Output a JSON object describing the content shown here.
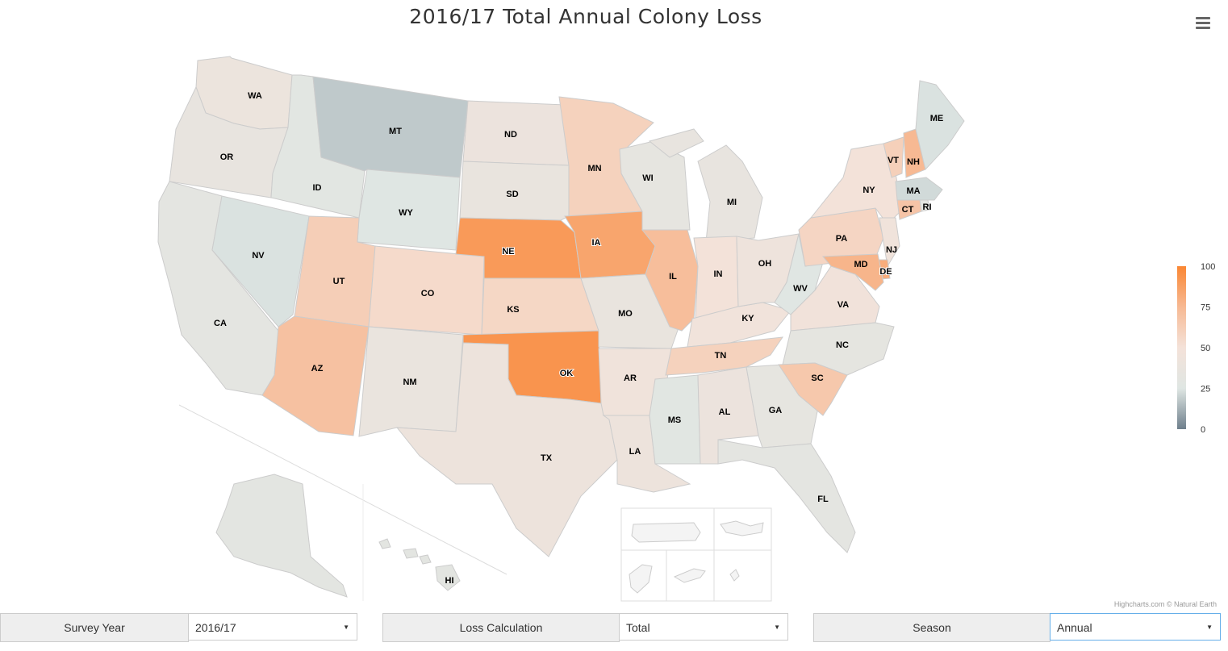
{
  "title": "2016/17 Total Annual Colony Loss",
  "credit": "Highcharts.com © Natural Earth",
  "colors": {
    "scale": [
      "#6e7f8c",
      "#dfe6e3",
      "#f4e2d9",
      "#f7b993",
      "#fa8633"
    ],
    "border": "#cccccc",
    "inset_border": "#cccccc"
  },
  "legend": {
    "min": 0,
    "max": 100,
    "ticks": [
      "100",
      "75",
      "50",
      "25",
      "0"
    ]
  },
  "controls": [
    {
      "label": "Survey Year",
      "value": "2016/17"
    },
    {
      "label": "Loss Calculation",
      "value": "Total"
    },
    {
      "label": "Season",
      "value": "Annual"
    }
  ],
  "icons": {
    "menu": "hamburger-icon",
    "dropdown": "caret-down-icon"
  },
  "states": [
    {
      "code": "WA",
      "loss": 40
    },
    {
      "code": "OR",
      "loss": 36
    },
    {
      "code": "CA",
      "loss": 31
    },
    {
      "code": "ID",
      "loss": 28
    },
    {
      "code": "NV",
      "loss": 24
    },
    {
      "code": "MT",
      "loss": 18
    },
    {
      "code": "WY",
      "loss": 25
    },
    {
      "code": "UT",
      "loss": 62
    },
    {
      "code": "AZ",
      "loss": 70
    },
    {
      "code": "CO",
      "loss": 55
    },
    {
      "code": "NM",
      "loss": 38
    },
    {
      "code": "ND",
      "loss": 41
    },
    {
      "code": "SD",
      "loss": 37
    },
    {
      "code": "NE",
      "loss": 90
    },
    {
      "code": "KS",
      "loss": 57
    },
    {
      "code": "OK",
      "loss": 93
    },
    {
      "code": "TX",
      "loss": 42
    },
    {
      "code": "MN",
      "loss": 60
    },
    {
      "code": "IA",
      "loss": 85
    },
    {
      "code": "MO",
      "loss": 37
    },
    {
      "code": "AR",
      "loss": 45
    },
    {
      "code": "LA",
      "loss": 42
    },
    {
      "code": "WI",
      "loss": 33
    },
    {
      "code": "IL",
      "loss": 72
    },
    {
      "code": "MS",
      "loss": 27
    },
    {
      "code": "MI",
      "loss": 36
    },
    {
      "code": "IN",
      "loss": 49
    },
    {
      "code": "KY",
      "loss": 46
    },
    {
      "code": "TN",
      "loss": 60
    },
    {
      "code": "AL",
      "loss": 41
    },
    {
      "code": "OH",
      "loss": 43
    },
    {
      "code": "GA",
      "loss": 33
    },
    {
      "code": "FL",
      "loss": 31
    },
    {
      "code": "WV",
      "loss": 26
    },
    {
      "code": "VA",
      "loss": 47
    },
    {
      "code": "NC",
      "loss": 32
    },
    {
      "code": "SC",
      "loss": 66
    },
    {
      "code": "PA",
      "loss": 58
    },
    {
      "code": "NY",
      "loss": 49
    },
    {
      "code": "VT",
      "loss": 61
    },
    {
      "code": "NH",
      "loss": 75
    },
    {
      "code": "ME",
      "loss": 24
    },
    {
      "code": "MA",
      "loss": 22
    },
    {
      "code": "RI",
      "loss": 31
    },
    {
      "code": "CT",
      "loss": 68
    },
    {
      "code": "NJ",
      "loss": 45
    },
    {
      "code": "DE",
      "loss": 81
    },
    {
      "code": "MD",
      "loss": 77
    },
    {
      "code": "AK",
      "loss": 30
    },
    {
      "code": "HI",
      "loss": 30
    }
  ]
}
